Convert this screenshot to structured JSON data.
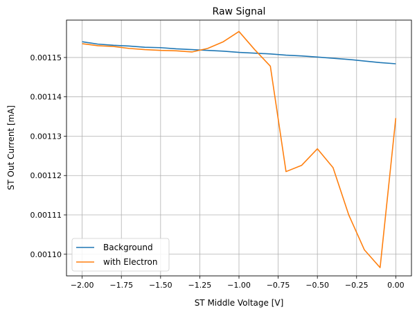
{
  "chart_data": {
    "type": "line",
    "title": "Raw Signal",
    "xlabel": "ST Middle Voltage [V]",
    "ylabel": "ST Out Current [mA]",
    "xlim": [
      -2.1,
      0.1
    ],
    "ylim": [
      0.0010945,
      0.0011595
    ],
    "x_ticks": [
      -2.0,
      -1.75,
      -1.5,
      -1.25,
      -1.0,
      -0.75,
      -0.5,
      -0.25,
      0.0
    ],
    "x_tick_labels": [
      "−2.00",
      "−1.75",
      "−1.50",
      "−1.25",
      "−1.00",
      "−0.75",
      "−0.50",
      "−0.25",
      "0.00"
    ],
    "y_ticks": [
      0.0011,
      0.00111,
      0.00112,
      0.00113,
      0.00114,
      0.00115
    ],
    "y_tick_labels": [
      "0.00110",
      "0.00111",
      "0.00112",
      "0.00113",
      "0.00114",
      "0.00115"
    ],
    "grid": true,
    "legend_position": "lower-left",
    "x": [
      -2.0,
      -1.9,
      -1.8,
      -1.7,
      -1.6,
      -1.5,
      -1.4,
      -1.3,
      -1.2,
      -1.1,
      -1.0,
      -0.9,
      -0.8,
      -0.7,
      -0.6,
      -0.5,
      -0.4,
      -0.3,
      -0.2,
      -0.1,
      0.0
    ],
    "series": [
      {
        "name": "Background",
        "color": "#1f77b4",
        "values": [
          0.001154,
          0.0011534,
          0.0011531,
          0.0011529,
          0.0011526,
          0.0011525,
          0.0011522,
          0.001152,
          0.0011518,
          0.0011516,
          0.0011513,
          0.0011511,
          0.0011509,
          0.0011506,
          0.0011504,
          0.0011501,
          0.0011498,
          0.0011495,
          0.0011491,
          0.0011487,
          0.0011484
        ]
      },
      {
        "name": "with Electron",
        "color": "#ff7f0e",
        "values": [
          0.0011535,
          0.001153,
          0.0011528,
          0.0011523,
          0.001152,
          0.0011518,
          0.0011517,
          0.0011514,
          0.0011523,
          0.001154,
          0.0011566,
          0.001152,
          0.0011478,
          0.001121,
          0.0011226,
          0.0011268,
          0.001122,
          0.00111,
          0.0011011,
          0.0010966,
          0.0011346
        ]
      }
    ]
  }
}
